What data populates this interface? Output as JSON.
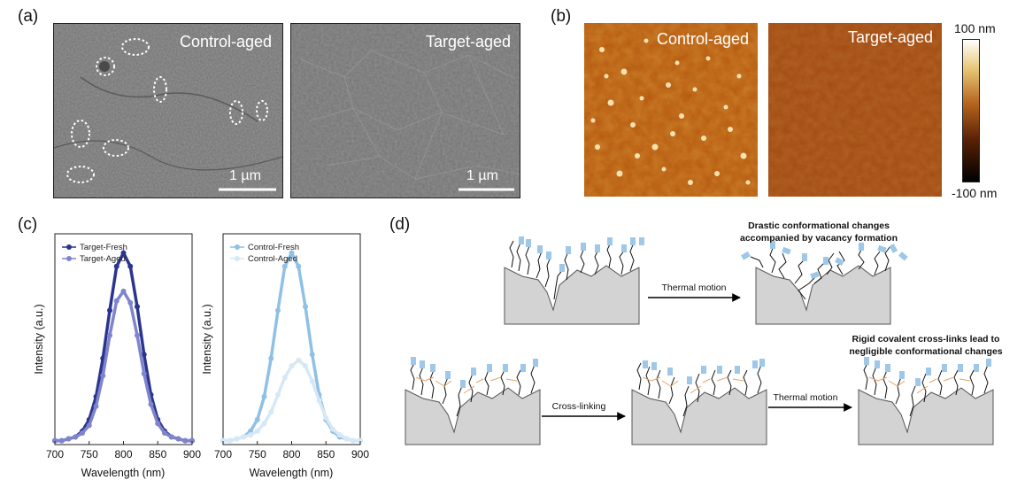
{
  "panel_a": {
    "label": "(a)",
    "left_title": "Control-aged",
    "right_title": "Target-aged",
    "left_scale": "1 µm",
    "right_scale": "1 µm"
  },
  "panel_b": {
    "label": "(b)",
    "left_title": "Control-aged",
    "right_title": "Target-aged",
    "colorbar_top": "100 nm",
    "colorbar_bottom": "-100 nm"
  },
  "panel_c": {
    "label": "(c)",
    "ylabel": "Intensity (a.u.)",
    "xlabel": "Wavelength (nm)",
    "ticks": [
      "700",
      "750",
      "800",
      "850",
      "900"
    ]
  },
  "chart_data": [
    {
      "type": "line",
      "xlabel": "Wavelength (nm)",
      "ylabel": "Intensity (a.u.)",
      "xlim": [
        700,
        900
      ],
      "ylim": [
        0,
        1.1
      ],
      "x": [
        700,
        710,
        720,
        730,
        740,
        750,
        760,
        770,
        780,
        790,
        800,
        810,
        820,
        830,
        840,
        850,
        860,
        870,
        880,
        890,
        900
      ],
      "series": [
        {
          "name": "Target-Fresh",
          "color": "#2b3590",
          "values": [
            0.02,
            0.02,
            0.03,
            0.04,
            0.07,
            0.13,
            0.25,
            0.45,
            0.7,
            0.93,
            1.0,
            0.93,
            0.72,
            0.47,
            0.26,
            0.13,
            0.07,
            0.04,
            0.03,
            0.02,
            0.02
          ]
        },
        {
          "name": "Target-Aged",
          "color": "#7f84cc",
          "values": [
            0.02,
            0.02,
            0.03,
            0.04,
            0.06,
            0.1,
            0.2,
            0.36,
            0.57,
            0.75,
            0.8,
            0.74,
            0.57,
            0.37,
            0.21,
            0.11,
            0.06,
            0.04,
            0.03,
            0.02,
            0.02
          ]
        }
      ]
    },
    {
      "type": "line",
      "xlabel": "Wavelength (nm)",
      "ylabel": "Intensity (a.u.)",
      "xlim": [
        700,
        900
      ],
      "ylim": [
        0,
        1.1
      ],
      "x": [
        700,
        710,
        720,
        730,
        740,
        750,
        760,
        770,
        780,
        790,
        800,
        810,
        820,
        830,
        840,
        850,
        860,
        870,
        880,
        890,
        900
      ],
      "series": [
        {
          "name": "Control-Fresh",
          "color": "#8fc0e6",
          "values": [
            0.02,
            0.02,
            0.03,
            0.04,
            0.07,
            0.13,
            0.25,
            0.45,
            0.7,
            0.93,
            1.0,
            0.93,
            0.72,
            0.47,
            0.26,
            0.13,
            0.07,
            0.04,
            0.03,
            0.02,
            0.02
          ]
        },
        {
          "name": "Control-Aged",
          "color": "#d6e8f5",
          "values": [
            0.02,
            0.02,
            0.03,
            0.04,
            0.05,
            0.07,
            0.11,
            0.17,
            0.26,
            0.35,
            0.41,
            0.44,
            0.41,
            0.33,
            0.23,
            0.14,
            0.08,
            0.05,
            0.03,
            0.02,
            0.02
          ]
        }
      ]
    }
  ],
  "panel_d": {
    "label": "(d)",
    "top_caption_1": "Drastic conformational changes",
    "top_caption_2": "accompanied by vacancy formation",
    "top_arrow": "Thermal motion",
    "bottom_caption_1": "Rigid covalent cross-links lead to",
    "bottom_caption_2": "negligible conformational changes",
    "bottom_arrow_1": "Cross-linking",
    "bottom_arrow_2": "Thermal motion"
  }
}
